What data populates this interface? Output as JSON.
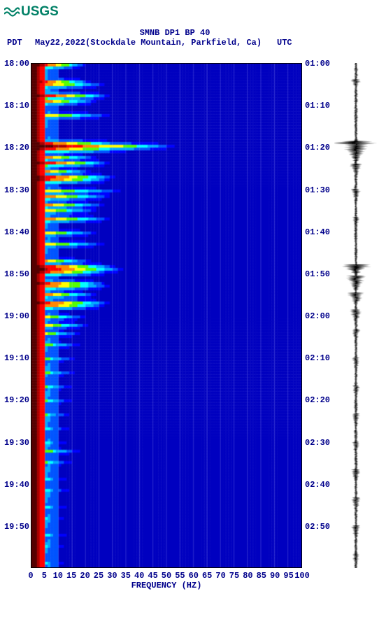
{
  "logo": {
    "text": "USGS"
  },
  "title": "SMNB DP1 BP 40",
  "subtitle": {
    "pdt": "PDT",
    "date_station": "May22,2022(Stockdale Mountain, Parkfield, Ca)",
    "utc": "UTC"
  },
  "axis": {
    "xlabel": "FREQUENCY (HZ)",
    "xticks": [
      0,
      5,
      10,
      15,
      20,
      25,
      30,
      35,
      40,
      45,
      50,
      55,
      60,
      65,
      70,
      75,
      80,
      85,
      90,
      95,
      100
    ],
    "left_times": [
      "18:00",
      "18:10",
      "18:20",
      "18:30",
      "18:40",
      "18:50",
      "19:00",
      "19:10",
      "19:20",
      "19:30",
      "19:40",
      "19:50"
    ],
    "right_times": [
      "01:00",
      "01:10",
      "01:20",
      "01:30",
      "01:40",
      "01:50",
      "02:00",
      "02:10",
      "02:20",
      "02:30",
      "02:40",
      "02:50"
    ]
  },
  "spectrogram": {
    "nrows": 180,
    "ncols": 100,
    "colors": {
      "bg_low": "#0000c0",
      "bg_high": "#0000ff",
      "band1": "#0055ff",
      "band2": "#00aaff",
      "band3": "#00ffff",
      "band4": "#55ff00",
      "band5": "#ffff00",
      "band6": "#ff8800",
      "band7": "#ff0000",
      "band8": "#aa0000",
      "band9": "#550000"
    },
    "events": [
      {
        "row": 0,
        "extent": 20,
        "intensity": 0.75
      },
      {
        "row": 6,
        "extent": 22,
        "intensity": 0.7
      },
      {
        "row": 7,
        "extent": 28,
        "intensity": 0.6
      },
      {
        "row": 11,
        "extent": 30,
        "intensity": 0.75
      },
      {
        "row": 13,
        "extent": 25,
        "intensity": 0.6
      },
      {
        "row": 18,
        "extent": 30,
        "intensity": 0.5
      },
      {
        "row": 28,
        "extent": 35,
        "intensity": 0.7
      },
      {
        "row": 29,
        "extent": 55,
        "intensity": 0.9
      },
      {
        "row": 30,
        "extent": 40,
        "intensity": 0.7
      },
      {
        "row": 33,
        "extent": 25,
        "intensity": 0.6
      },
      {
        "row": 35,
        "extent": 30,
        "intensity": 0.75
      },
      {
        "row": 38,
        "extent": 22,
        "intensity": 0.6
      },
      {
        "row": 40,
        "extent": 32,
        "intensity": 0.75
      },
      {
        "row": 41,
        "extent": 30,
        "intensity": 0.7
      },
      {
        "row": 45,
        "extent": 35,
        "intensity": 0.5
      },
      {
        "row": 47,
        "extent": 30,
        "intensity": 0.6
      },
      {
        "row": 50,
        "extent": 28,
        "intensity": 0.6
      },
      {
        "row": 52,
        "extent": 25,
        "intensity": 0.5
      },
      {
        "row": 55,
        "extent": 30,
        "intensity": 0.6
      },
      {
        "row": 60,
        "extent": 25,
        "intensity": 0.5
      },
      {
        "row": 64,
        "extent": 28,
        "intensity": 0.5
      },
      {
        "row": 70,
        "extent": 22,
        "intensity": 0.55
      },
      {
        "row": 72,
        "extent": 32,
        "intensity": 0.75
      },
      {
        "row": 73,
        "extent": 35,
        "intensity": 0.8
      },
      {
        "row": 74,
        "extent": 30,
        "intensity": 0.7
      },
      {
        "row": 78,
        "extent": 28,
        "intensity": 0.7
      },
      {
        "row": 79,
        "extent": 30,
        "intensity": 0.65
      },
      {
        "row": 82,
        "extent": 25,
        "intensity": 0.6
      },
      {
        "row": 85,
        "extent": 30,
        "intensity": 0.7
      },
      {
        "row": 86,
        "extent": 28,
        "intensity": 0.65
      },
      {
        "row": 90,
        "extent": 20,
        "intensity": 0.5
      },
      {
        "row": 93,
        "extent": 22,
        "intensity": 0.5
      },
      {
        "row": 96,
        "extent": 18,
        "intensity": 0.45
      },
      {
        "row": 100,
        "extent": 18,
        "intensity": 0.4
      },
      {
        "row": 105,
        "extent": 16,
        "intensity": 0.4
      },
      {
        "row": 110,
        "extent": 16,
        "intensity": 0.4
      },
      {
        "row": 115,
        "extent": 15,
        "intensity": 0.35
      },
      {
        "row": 120,
        "extent": 15,
        "intensity": 0.35
      },
      {
        "row": 125,
        "extent": 14,
        "intensity": 0.35
      },
      {
        "row": 130,
        "extent": 14,
        "intensity": 0.3
      },
      {
        "row": 135,
        "extent": 13,
        "intensity": 0.3
      },
      {
        "row": 138,
        "extent": 18,
        "intensity": 0.4
      },
      {
        "row": 142,
        "extent": 15,
        "intensity": 0.35
      },
      {
        "row": 148,
        "extent": 13,
        "intensity": 0.3
      },
      {
        "row": 152,
        "extent": 14,
        "intensity": 0.3
      },
      {
        "row": 158,
        "extent": 13,
        "intensity": 0.3
      },
      {
        "row": 162,
        "extent": 12,
        "intensity": 0.3
      },
      {
        "row": 168,
        "extent": 13,
        "intensity": 0.3
      },
      {
        "row": 172,
        "extent": 12,
        "intensity": 0.3
      },
      {
        "row": 178,
        "extent": 12,
        "intensity": 0.3
      }
    ]
  },
  "seismogram": {
    "base_amp": 3,
    "bursts": [
      {
        "row": 6,
        "amp": 6,
        "dur": 3
      },
      {
        "row": 28,
        "amp": 28,
        "dur": 2
      },
      {
        "row": 30,
        "amp": 14,
        "dur": 6
      },
      {
        "row": 36,
        "amp": 8,
        "dur": 5
      },
      {
        "row": 45,
        "amp": 6,
        "dur": 5
      },
      {
        "row": 55,
        "amp": 5,
        "dur": 5
      },
      {
        "row": 72,
        "amp": 18,
        "dur": 3
      },
      {
        "row": 76,
        "amp": 12,
        "dur": 6
      },
      {
        "row": 82,
        "amp": 10,
        "dur": 5
      },
      {
        "row": 88,
        "amp": 8,
        "dur": 5
      },
      {
        "row": 95,
        "amp": 6,
        "dur": 5
      },
      {
        "row": 105,
        "amp": 5,
        "dur": 6
      },
      {
        "row": 115,
        "amp": 5,
        "dur": 6
      },
      {
        "row": 125,
        "amp": 5,
        "dur": 6
      },
      {
        "row": 135,
        "amp": 5,
        "dur": 6
      },
      {
        "row": 145,
        "amp": 6,
        "dur": 6
      },
      {
        "row": 155,
        "amp": 6,
        "dur": 6
      },
      {
        "row": 165,
        "amp": 6,
        "dur": 6
      },
      {
        "row": 175,
        "amp": 5,
        "dur": 5
      }
    ]
  },
  "colors": {
    "text": "#00008b",
    "logo": "#008066",
    "seismo": "#000000",
    "bg": "#ffffff"
  }
}
